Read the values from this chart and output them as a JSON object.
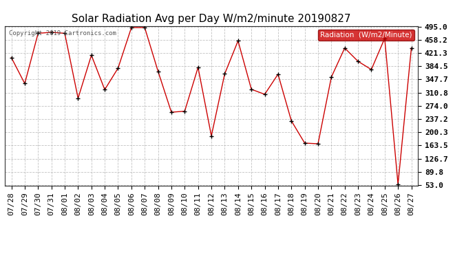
{
  "title": "Solar Radiation Avg per Day W/m2/minute 20190827",
  "copyright": "Copyright 2019 Cartronics.com",
  "legend_label": "Radiation  (W/m2/Minute)",
  "x_labels": [
    "07/28",
    "07/29",
    "07/30",
    "07/31",
    "08/01",
    "08/02",
    "08/03",
    "08/04",
    "08/05",
    "08/06",
    "08/07",
    "08/08",
    "08/09",
    "08/10",
    "08/11",
    "08/12",
    "08/13",
    "08/14",
    "08/15",
    "08/16",
    "08/17",
    "08/18",
    "08/19",
    "08/20",
    "08/21",
    "08/22",
    "08/23",
    "08/24",
    "08/25",
    "08/26",
    "08/27"
  ],
  "y_values": [
    408,
    336,
    476,
    479,
    476,
    295,
    415,
    319,
    379,
    492,
    492,
    370,
    256,
    259,
    381,
    190,
    363,
    455,
    320,
    306,
    362,
    232,
    170,
    168,
    354,
    435,
    398,
    375,
    462,
    55,
    435
  ],
  "y_min": 53.0,
  "y_max": 495.0,
  "y_ticks": [
    53.0,
    89.8,
    126.7,
    163.5,
    200.3,
    237.2,
    274.0,
    310.8,
    347.7,
    384.5,
    421.3,
    458.2,
    495.0
  ],
  "line_color": "#cc0000",
  "marker_color": "#000000",
  "bg_color": "#ffffff",
  "grid_color": "#bbbbbb",
  "title_fontsize": 11,
  "tick_fontsize": 8,
  "legend_bg": "#cc0000",
  "legend_fg": "#ffffff"
}
